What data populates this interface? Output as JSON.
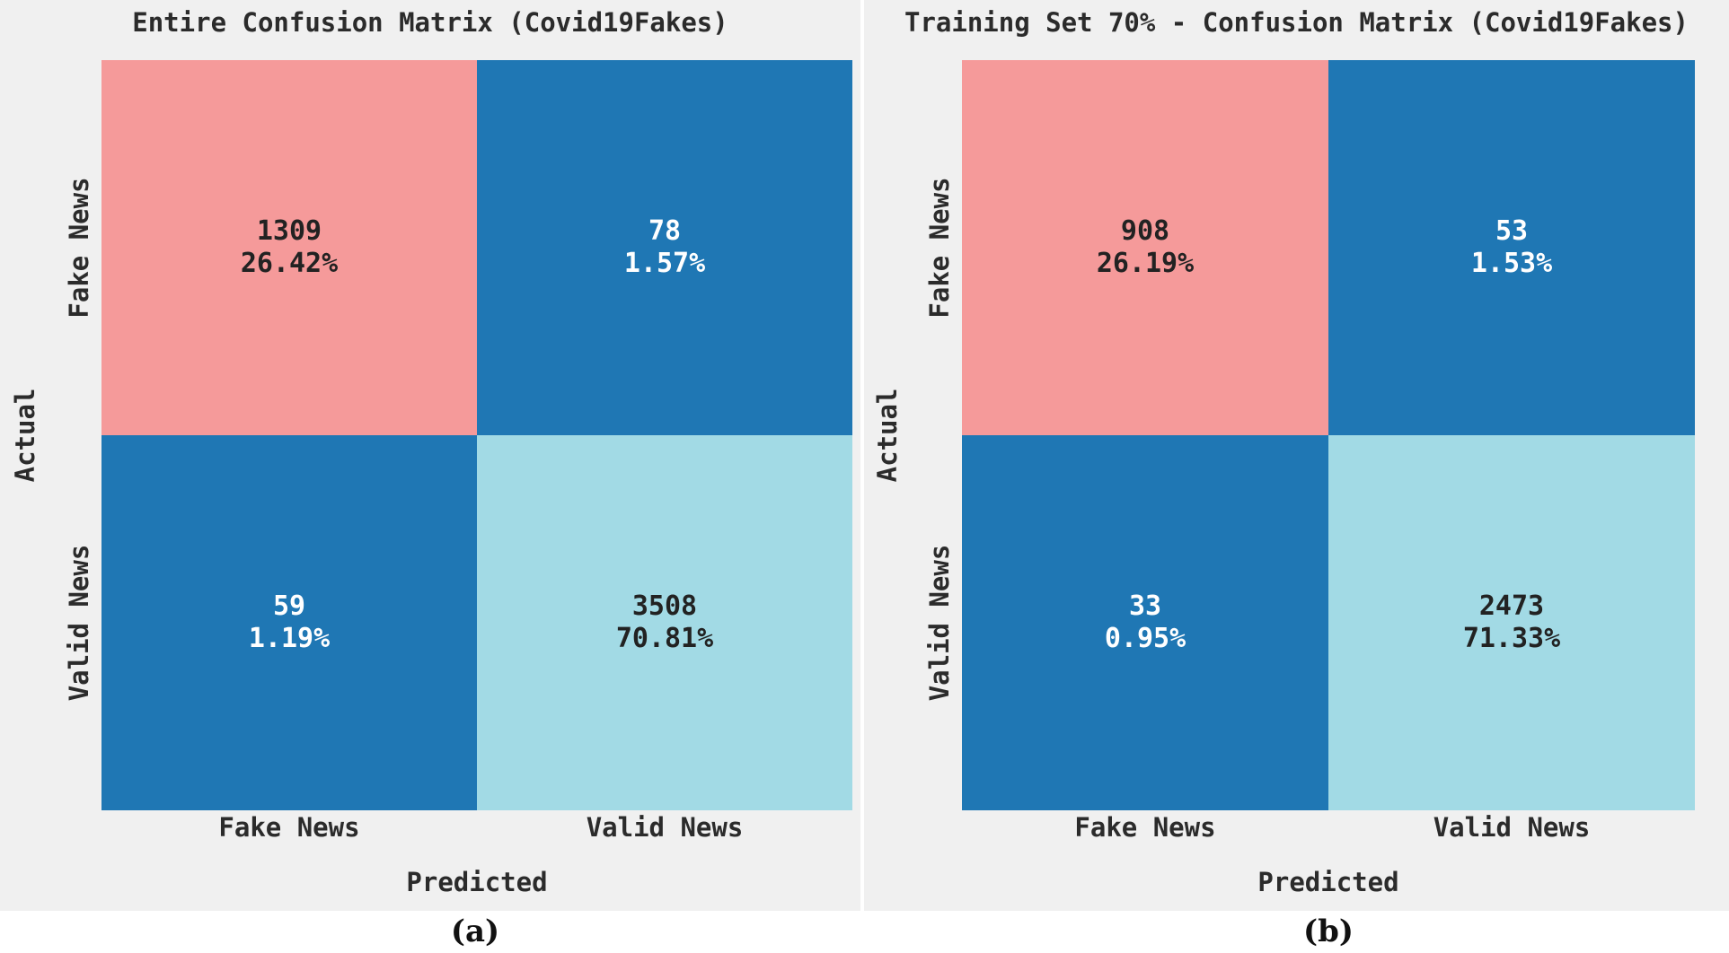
{
  "colors": {
    "true_positive": "#f59a9a",
    "misclassified": "#1f77b4",
    "true_negative": "#a2dae5",
    "text_dark": "#222222",
    "text_light": "#ffffff",
    "panel_background": "#f0f0f0"
  },
  "chart_data": [
    {
      "type": "heatmap",
      "title": "Entire Confusion Matrix (Covid19Fakes)",
      "xlabel": "Predicted",
      "ylabel": "Actual",
      "x_categories": [
        "Fake News",
        "Valid News"
      ],
      "y_categories": [
        "Fake News",
        "Valid News"
      ],
      "cells": [
        {
          "row": 0,
          "col": 0,
          "count": "1309",
          "pct": "26.42%"
        },
        {
          "row": 0,
          "col": 1,
          "count": "78",
          "pct": "1.57%"
        },
        {
          "row": 1,
          "col": 0,
          "count": "59",
          "pct": "1.19%"
        },
        {
          "row": 1,
          "col": 1,
          "count": "3508",
          "pct": "70.81%"
        }
      ],
      "caption": "(a)"
    },
    {
      "type": "heatmap",
      "title": "Training Set 70% - Confusion Matrix (Covid19Fakes)",
      "xlabel": "Predicted",
      "ylabel": "Actual",
      "x_categories": [
        "Fake News",
        "Valid News"
      ],
      "y_categories": [
        "Fake News",
        "Valid News"
      ],
      "cells": [
        {
          "row": 0,
          "col": 0,
          "count": "908",
          "pct": "26.19%"
        },
        {
          "row": 0,
          "col": 1,
          "count": "53",
          "pct": "1.53%"
        },
        {
          "row": 1,
          "col": 0,
          "count": "33",
          "pct": "0.95%"
        },
        {
          "row": 1,
          "col": 1,
          "count": "2473",
          "pct": "71.33%"
        }
      ],
      "caption": "(b)"
    }
  ]
}
